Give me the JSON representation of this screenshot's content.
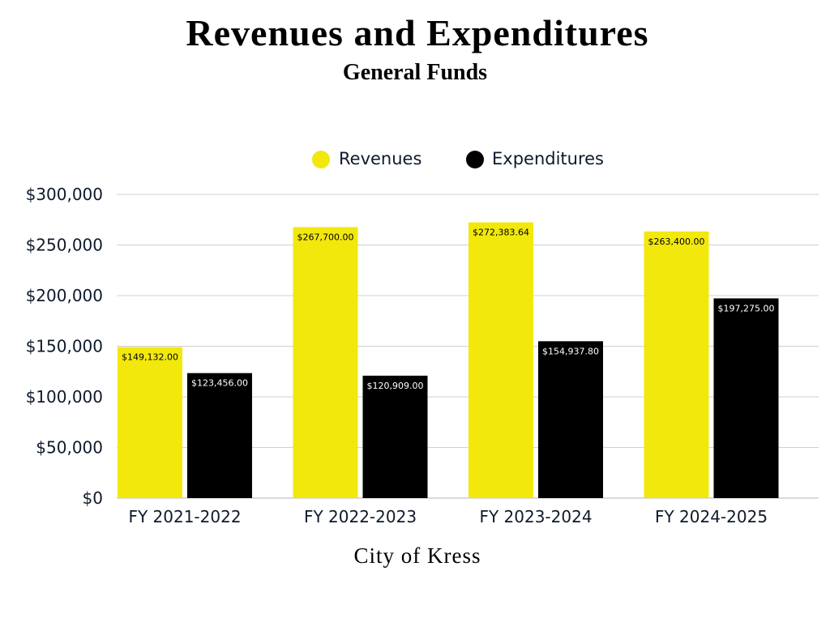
{
  "header": {
    "title": "Revenues and Expenditures",
    "subtitle": "General Funds"
  },
  "footer": {
    "text": "City of Kress"
  },
  "colors": {
    "revenues": "#f2e80c",
    "expenditures": "#000000",
    "grid": "#d0d0d0",
    "axis_text": "#0e1a2b"
  },
  "chart_data": {
    "type": "bar",
    "title": "Revenues and Expenditures",
    "subtitle": "General Funds",
    "xlabel": "",
    "ylabel": "",
    "categories": [
      "FY 2021-2022",
      "FY 2022-2023",
      "FY 2023-2024",
      "FY 2024-2025"
    ],
    "series": [
      {
        "name": "Revenues",
        "values": [
          149132.0,
          267700.0,
          272383.64,
          263400.0
        ],
        "labels": [
          "$149,132.00",
          "$267,700.00",
          "$272,383.64",
          "$263,400.00"
        ]
      },
      {
        "name": "Expenditures",
        "values": [
          123456.0,
          120909.0,
          154937.8,
          197275.0
        ],
        "labels": [
          "$123,456.00",
          "$120,909.00",
          "$154,937.80",
          "$197,275.00"
        ]
      }
    ],
    "ylim": [
      0,
      300000
    ],
    "yticks": [
      0,
      50000,
      100000,
      150000,
      200000,
      250000,
      300000
    ],
    "ytick_labels": [
      "$0",
      "$50,000",
      "$100,000",
      "$150,000",
      "$200,000",
      "$250,000",
      "$300,000"
    ],
    "grid": true,
    "legend_position": "top-center"
  }
}
